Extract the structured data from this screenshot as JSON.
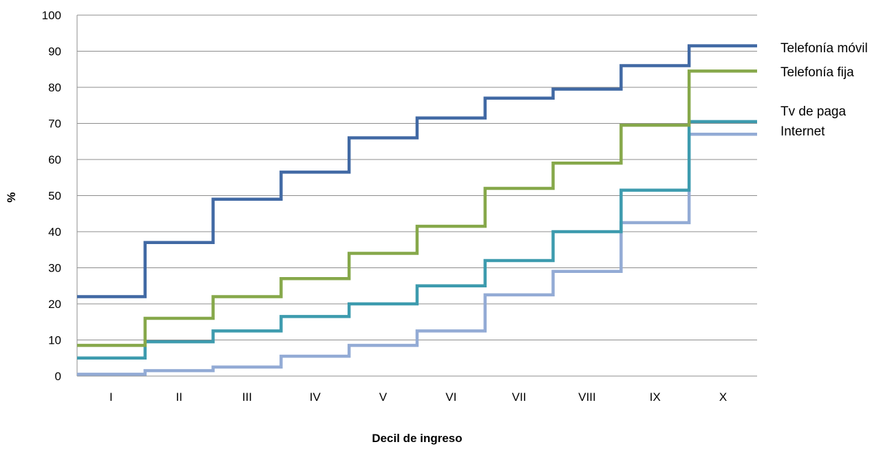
{
  "chart_data": {
    "type": "line",
    "step": true,
    "xlabel": "Decil de ingreso",
    "ylabel": "%",
    "ylim": [
      0,
      100
    ],
    "yticks": [
      0,
      10,
      20,
      30,
      40,
      50,
      60,
      70,
      80,
      90,
      100
    ],
    "grid": true,
    "legend_position": "right",
    "categories": [
      "I",
      "II",
      "III",
      "IV",
      "V",
      "VI",
      "VII",
      "VIII",
      "IX",
      "X"
    ],
    "series": [
      {
        "name": "Telefonía móvil",
        "color": "#4169A4",
        "values": [
          22,
          37,
          49,
          56.5,
          66,
          71.5,
          77,
          79.5,
          86,
          91.5
        ]
      },
      {
        "name": "Telefonía fija",
        "color": "#86A84A",
        "values": [
          8.5,
          16,
          22,
          27,
          34,
          41.5,
          52,
          59,
          69.5,
          84.5
        ]
      },
      {
        "name": "Tv de paga",
        "color": "#3D9BAE",
        "values": [
          5,
          9.5,
          12.5,
          16.5,
          20,
          25,
          32,
          40,
          51.5,
          70.5
        ]
      },
      {
        "name": "Internet",
        "color": "#93ABD5",
        "values": [
          0.5,
          1.5,
          2.5,
          5.5,
          8.5,
          12.5,
          22.5,
          29,
          42.5,
          67
        ]
      }
    ]
  }
}
